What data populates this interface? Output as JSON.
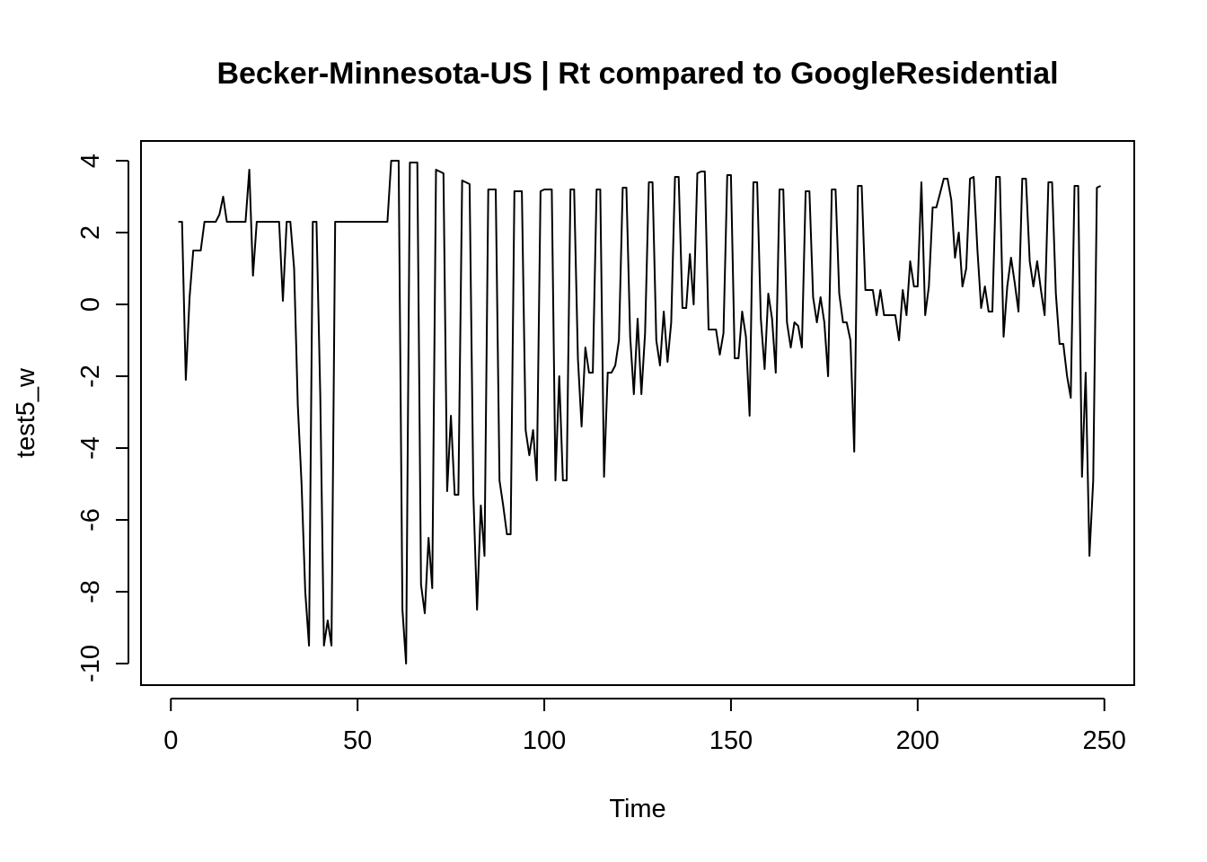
{
  "chart_data": {
    "type": "line",
    "title": "Becker-Minnesota-US | Rt compared to GoogleResidential",
    "xlabel": "Time",
    "ylabel": "test5_w",
    "xlim": [
      -8,
      258
    ],
    "ylim": [
      -10.6,
      4.55
    ],
    "x_ticks": [
      0,
      50,
      100,
      150,
      200,
      250
    ],
    "y_ticks": [
      -10,
      -8,
      -6,
      -4,
      -2,
      0,
      2,
      4
    ],
    "grid": false,
    "legend": "none",
    "series": [
      {
        "x_start": 2,
        "line_color": "#000000",
        "values": [
          2.3,
          2.3,
          -2.1,
          0.2,
          1.5,
          1.5,
          1.5,
          2.3,
          2.3,
          2.3,
          2.3,
          2.5,
          3.0,
          2.3,
          2.3,
          2.3,
          2.3,
          2.3,
          2.3,
          3.75,
          0.8,
          2.3,
          2.3,
          2.3,
          2.3,
          2.3,
          2.3,
          2.3,
          0.1,
          2.3,
          2.3,
          1.0,
          -2.8,
          -5.0,
          -8.0,
          -9.5,
          2.3,
          2.3,
          -2.5,
          -9.5,
          -8.8,
          -9.5,
          2.3,
          2.3,
          2.3,
          2.3,
          2.3,
          2.3,
          2.3,
          2.3,
          2.3,
          2.3,
          2.3,
          2.3,
          2.3,
          2.3,
          2.3,
          4.0,
          4.0,
          4.0,
          -8.5,
          -10.0,
          3.95,
          3.95,
          3.95,
          -7.8,
          -8.6,
          -6.5,
          -7.9,
          3.75,
          3.7,
          3.65,
          -5.2,
          -3.1,
          -5.3,
          -5.3,
          3.45,
          3.4,
          3.35,
          -5.3,
          -8.5,
          -5.6,
          -7.0,
          3.2,
          3.2,
          3.2,
          -4.9,
          -5.6,
          -6.4,
          -6.4,
          3.15,
          3.15,
          3.15,
          -3.5,
          -4.2,
          -3.5,
          -4.9,
          3.15,
          3.2,
          3.2,
          3.2,
          -4.9,
          -2.0,
          -4.9,
          -4.9,
          3.2,
          3.2,
          -1.5,
          -3.4,
          -1.2,
          -1.9,
          -1.9,
          3.2,
          3.2,
          -4.8,
          -1.9,
          -1.9,
          -1.7,
          -1.0,
          3.25,
          3.25,
          -0.9,
          -2.5,
          -0.4,
          -2.5,
          -0.8,
          3.4,
          3.4,
          -1.0,
          -1.7,
          -0.2,
          -1.6,
          -0.5,
          3.55,
          3.55,
          -0.1,
          -0.1,
          1.4,
          0.0,
          3.65,
          3.7,
          3.7,
          -0.7,
          -0.7,
          -0.7,
          -1.4,
          -0.8,
          3.6,
          3.6,
          -1.5,
          -1.5,
          -0.2,
          -0.9,
          -3.1,
          3.4,
          3.4,
          -0.4,
          -1.8,
          0.3,
          -0.4,
          -1.9,
          3.2,
          3.2,
          -0.5,
          -1.2,
          -0.5,
          -0.6,
          -1.2,
          3.15,
          3.15,
          0.2,
          -0.5,
          0.2,
          -0.5,
          -2.0,
          3.2,
          3.2,
          0.3,
          -0.5,
          -0.5,
          -1.0,
          -4.1,
          3.3,
          3.3,
          0.4,
          0.4,
          0.4,
          -0.3,
          0.4,
          -0.3,
          -0.3,
          -0.3,
          -0.3,
          -1.0,
          0.4,
          -0.3,
          1.2,
          0.5,
          0.5,
          3.4,
          -0.3,
          0.5,
          2.7,
          2.7,
          3.1,
          3.5,
          3.5,
          2.9,
          1.3,
          2.0,
          0.5,
          1.0,
          3.5,
          3.55,
          1.5,
          -0.1,
          0.5,
          -0.2,
          -0.2,
          3.55,
          3.55,
          -0.9,
          0.5,
          1.3,
          0.6,
          -0.2,
          3.5,
          3.5,
          1.2,
          0.5,
          1.2,
          0.4,
          -0.3,
          3.4,
          3.4,
          0.3,
          -1.1,
          -1.1,
          -2.0,
          -2.6,
          3.3,
          3.3,
          -4.8,
          -1.9,
          -7.0,
          -4.9,
          3.25,
          3.3
        ]
      }
    ]
  }
}
